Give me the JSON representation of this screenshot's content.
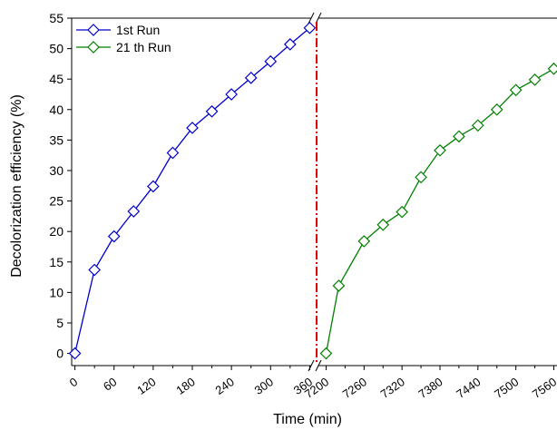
{
  "chart_data": {
    "type": "line",
    "title": "",
    "xlabel": "Time (min)",
    "ylabel": "Decolorization efficiency (%)",
    "ylim": [
      -2,
      55
    ],
    "y_ticks": [
      "0",
      "5",
      "10",
      "15",
      "20",
      "25",
      "30",
      "35",
      "40",
      "45",
      "50",
      "55"
    ],
    "x_axis_broken": true,
    "x_segments": [
      {
        "range": [
          -5,
          365
        ],
        "ticks": [
          "0",
          "60",
          "120",
          "180",
          "240",
          "300",
          "360"
        ]
      },
      {
        "range": [
          7185,
          7565
        ],
        "ticks": [
          "7200",
          "7260",
          "7320",
          "7380",
          "7440",
          "7500",
          "7560"
        ]
      }
    ],
    "legend_position": "top-left",
    "divider_color": "#e00000",
    "series": [
      {
        "name": "1st  Run",
        "color": "#0000cc",
        "marker": "diamond-open",
        "segment": 0,
        "x": [
          0,
          30,
          60,
          90,
          120,
          150,
          180,
          210,
          240,
          270,
          300,
          330,
          360
        ],
        "y": [
          0,
          13.7,
          19.2,
          23.3,
          27.4,
          32.9,
          37.0,
          39.7,
          42.5,
          45.2,
          47.9,
          50.7,
          53.4
        ]
      },
      {
        "name": "21 th Run",
        "color": "#008000",
        "marker": "diamond-open",
        "segment": 1,
        "x": [
          7200,
          7220,
          7260,
          7290,
          7320,
          7350,
          7380,
          7410,
          7440,
          7470,
          7500,
          7530,
          7560
        ],
        "y": [
          0,
          11.1,
          18.4,
          21.1,
          23.2,
          28.9,
          33.3,
          35.6,
          37.4,
          40.0,
          43.2,
          44.9,
          46.7
        ]
      }
    ]
  }
}
